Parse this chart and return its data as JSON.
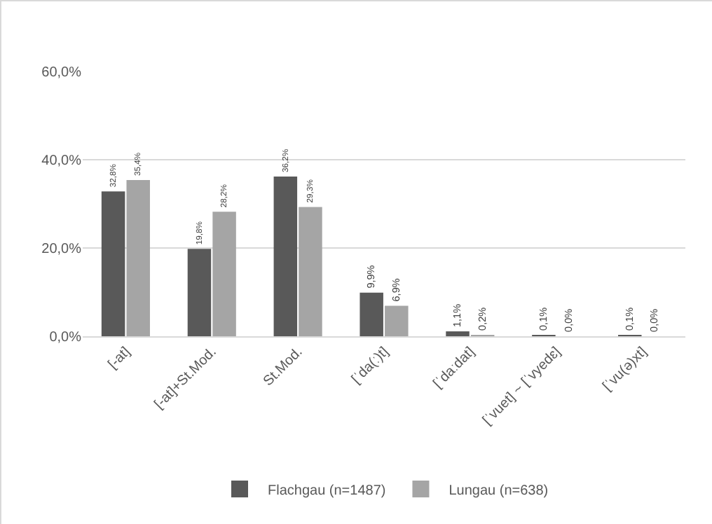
{
  "chart_data": {
    "type": "bar",
    "categories": [
      "[-at]",
      "[-at]+St.Mod.",
      "St.Mod.",
      "[ˈda(ː)t]",
      "[ˈdaːdat]",
      "[ˈvuet] ~ [ˈvyedɛ]",
      "[ˈvu(ə)xt]"
    ],
    "series": [
      {
        "name": "Flachgau (n=1487)",
        "color": "#595959",
        "values": [
          32.8,
          19.8,
          36.2,
          9.9,
          1.1,
          0.1,
          0.1
        ],
        "value_labels": [
          "32,8%",
          "19,8%",
          "36,2%",
          "9,9%",
          "1,1%",
          "0,1%",
          "0,1%"
        ]
      },
      {
        "name": "Lungau (n=638)",
        "color": "#a5a5a5",
        "values": [
          35.4,
          28.2,
          29.3,
          6.9,
          0.2,
          0.0,
          0.0
        ],
        "value_labels": [
          "35,4%",
          "28,2%",
          "29,3%",
          "6,9%",
          "0,2%",
          "0,0%",
          "0,0%"
        ]
      }
    ],
    "ylim": [
      0,
      60
    ],
    "yticks": [
      {
        "value": 0,
        "label": "0,0%"
      },
      {
        "value": 20,
        "label": "20,0%"
      },
      {
        "value": 40,
        "label": "40,0%"
      },
      {
        "value": 60,
        "label": "60,0%"
      }
    ],
    "grid": "y",
    "legend": "bottom"
  }
}
